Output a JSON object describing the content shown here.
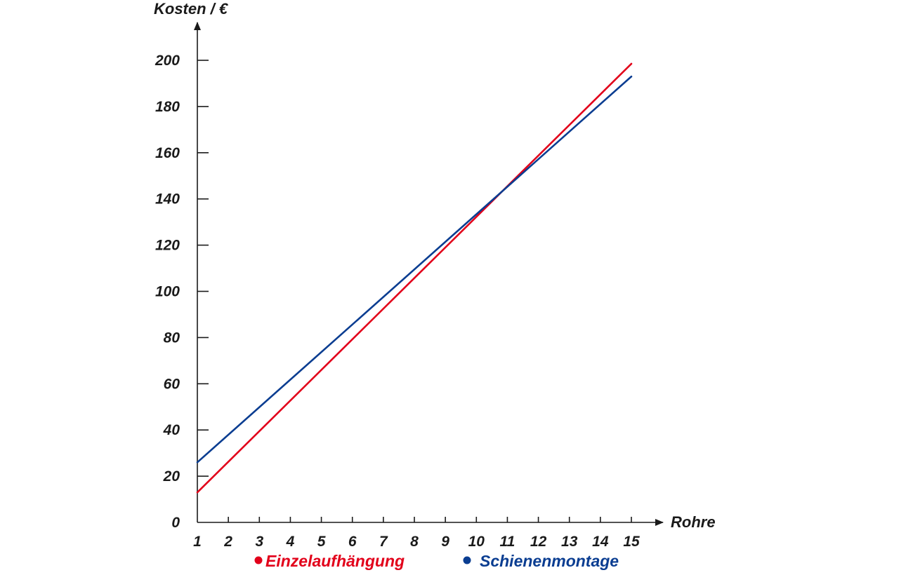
{
  "chart_data": {
    "type": "line",
    "title": "",
    "xlabel": "Rohre",
    "ylabel": "Kosten / €",
    "xlim": [
      1,
      15
    ],
    "ylim": [
      0,
      200
    ],
    "x_ticks": [
      1,
      2,
      3,
      4,
      5,
      6,
      7,
      8,
      9,
      10,
      11,
      12,
      13,
      14,
      15
    ],
    "y_ticks": [
      0,
      20,
      40,
      60,
      80,
      100,
      120,
      140,
      160,
      180,
      200
    ],
    "x": [
      1,
      15
    ],
    "series": [
      {
        "name": "Einzelaufhängung",
        "color": "#e2001a",
        "values": [
          13,
          198.5
        ]
      },
      {
        "name": "Schienenmontage",
        "color": "#0a3d91",
        "values": [
          26,
          193
        ]
      }
    ],
    "legend_position": "bottom",
    "grid": false
  }
}
